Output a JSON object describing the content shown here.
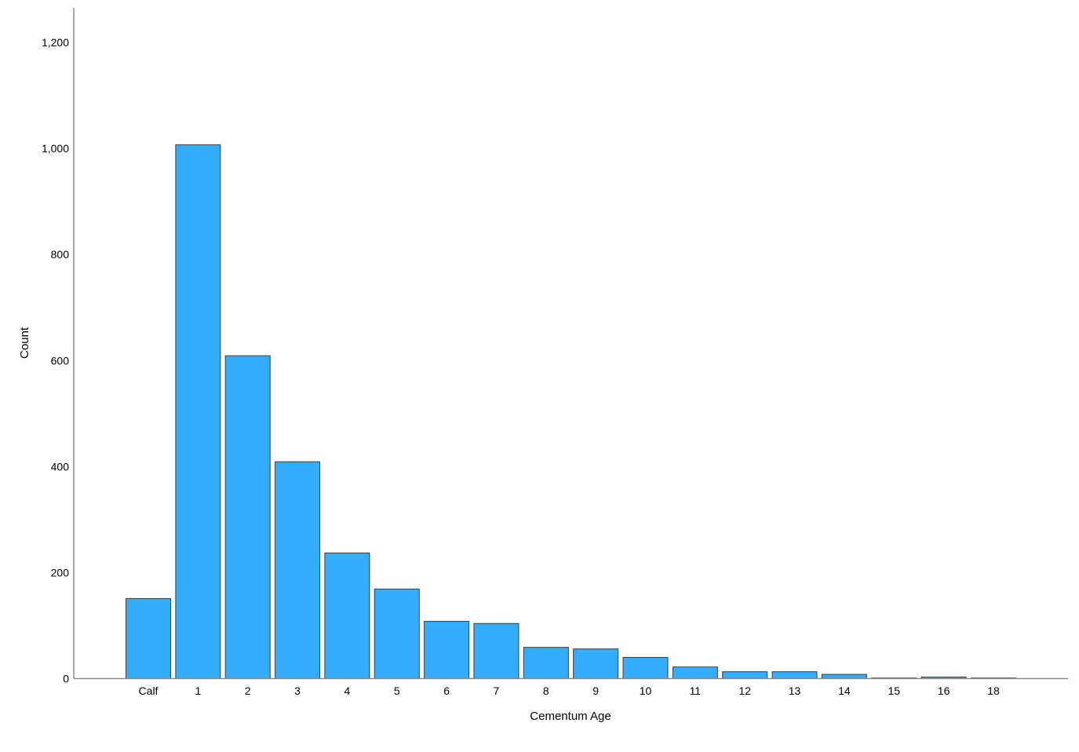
{
  "chart_data": {
    "type": "bar",
    "categories": [
      "Calf",
      "1",
      "2",
      "3",
      "4",
      "5",
      "6",
      "7",
      "8",
      "9",
      "10",
      "11",
      "12",
      "13",
      "14",
      "15",
      "16",
      "18"
    ],
    "values": [
      151,
      1007,
      609,
      409,
      237,
      169,
      108,
      104,
      59,
      56,
      40,
      22,
      13,
      13,
      8,
      1,
      3,
      1
    ],
    "title": "",
    "xlabel": "Cementum Age",
    "ylabel": "Count",
    "ylim": [
      0,
      1200
    ],
    "yticks": [
      "0",
      "200",
      "400",
      "600",
      "800",
      "1,000",
      "1,200"
    ],
    "ytick_values": [
      0,
      200,
      400,
      600,
      800,
      1000,
      1200
    ],
    "grid": false,
    "legend": "none",
    "bar_color": "#33adff",
    "bar_edge_color": "#3d3d3d",
    "axis_color": "#888888"
  }
}
